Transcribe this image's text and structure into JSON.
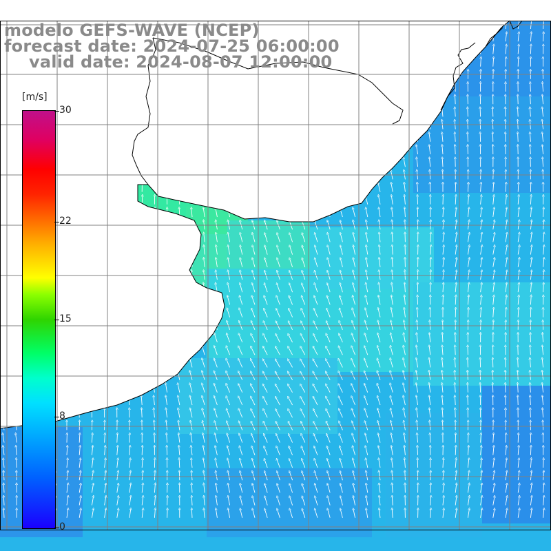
{
  "title": {
    "line1": "modelo GEFS-WAVE (NCEP)",
    "line2": "forecast date: 2024-07-25 06:00:00",
    "line3": "valid date: 2024-08-07 12:00:00"
  },
  "colorbar": {
    "units_label": "[m/s]",
    "min": 0,
    "max": 30,
    "ticks": [
      {
        "label": "30",
        "value": 30
      },
      {
        "label": "22",
        "value": 22
      },
      {
        "label": "15",
        "value": 15
      },
      {
        "label": "8",
        "value": 8
      },
      {
        "label": "0",
        "value": 0
      }
    ]
  },
  "field": {
    "variable": "wind speed and direction",
    "dominant_direction": "from south / southeast (arrows pointing north-northwest)",
    "colors": {
      "ocean_blue": "#2aa6ec",
      "ocean_cyan": "#2ad8e8",
      "estuary_green": "#2eeaa0",
      "arrow": "#ffffff",
      "land": "#ffffff",
      "grid": "#808080"
    }
  }
}
